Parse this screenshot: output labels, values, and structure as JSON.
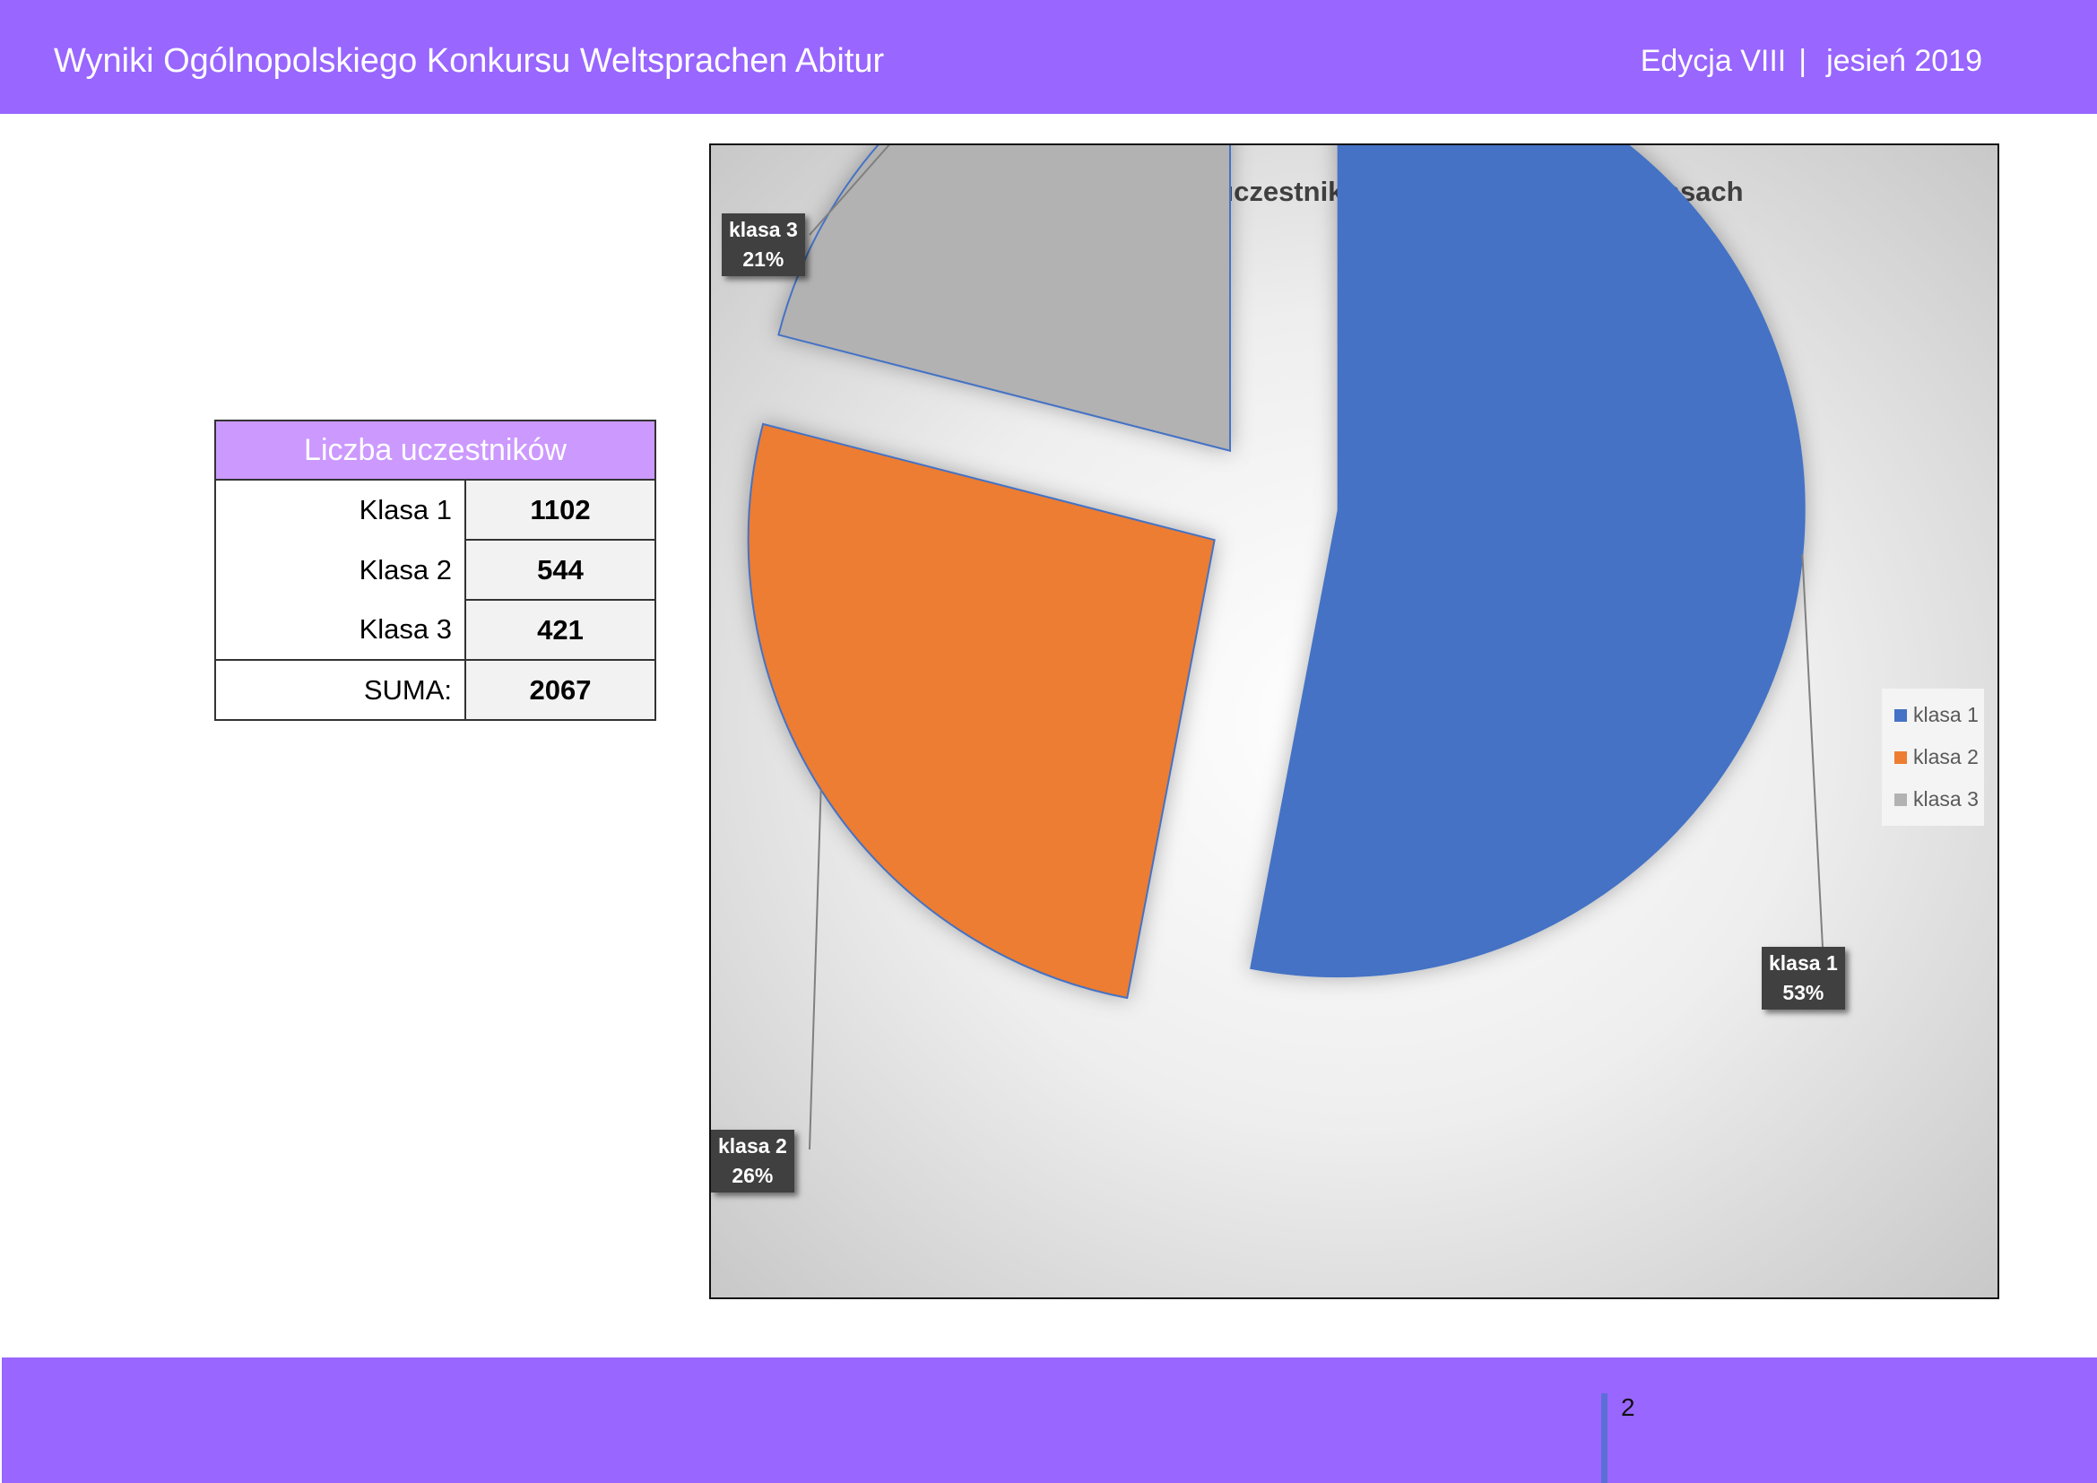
{
  "header": {
    "title": "Wyniki Ogólnopolskiego Konkursu Weltsprachen Abitur",
    "edition": "Edycja VIII",
    "separator": "|",
    "season": "jesień 2019"
  },
  "table": {
    "header": "Liczba uczestników",
    "rows": [
      {
        "label": "Klasa 1",
        "value": "1102"
      },
      {
        "label": "Klasa 2",
        "value": "544"
      },
      {
        "label": "Klasa 3",
        "value": "421"
      }
    ],
    "total_label": "SUMA:",
    "total_value": "2067"
  },
  "chart_data": {
    "type": "pie",
    "title": "Procentowy udział uczestników w poszczególnych klasach",
    "categories": [
      "klasa 1",
      "klasa 2",
      "klasa 3"
    ],
    "values": [
      53,
      26,
      21
    ],
    "value_unit": "%",
    "data_labels": [
      {
        "name": "klasa 1",
        "percent": "53%"
      },
      {
        "name": "klasa 2",
        "percent": "26%"
      },
      {
        "name": "klasa 3",
        "percent": "21%"
      }
    ],
    "colors": [
      "#4472c4",
      "#ed7d31",
      "#b2b2b2"
    ],
    "exploded": true,
    "legend_position": "right"
  },
  "footer": {
    "page_number": "2"
  },
  "colors": {
    "brand": "#9966ff",
    "table_header": "#cc99ff"
  }
}
